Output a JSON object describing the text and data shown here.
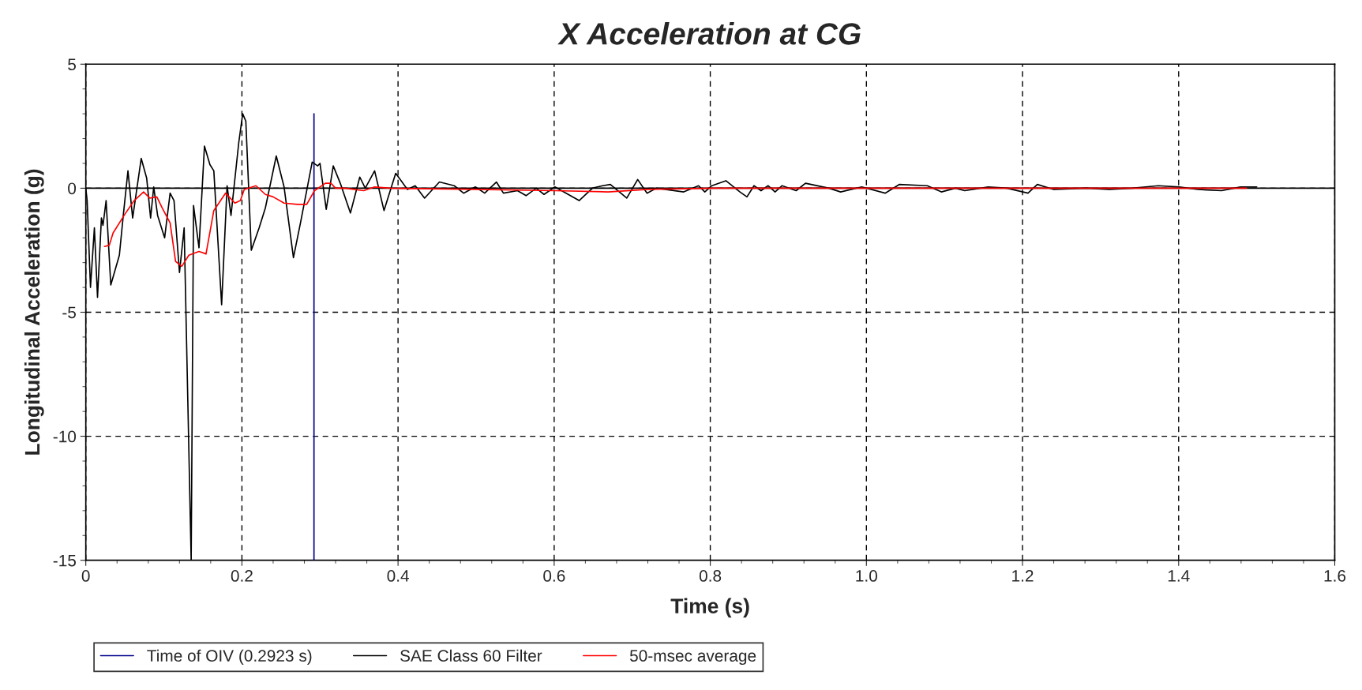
{
  "chart_data": {
    "type": "line",
    "title": "X Acceleration at CG",
    "xlabel": "Time (s)",
    "ylabel": "Longitudinal Acceleration (g)",
    "xlim": [
      0,
      1.6
    ],
    "ylim": [
      -15,
      5
    ],
    "xticks": [
      0,
      0.2,
      0.4,
      0.6,
      0.8,
      {
        "value": 1.0,
        "label": "1.0"
      },
      1.2,
      1.4,
      1.6
    ],
    "yticks": [
      -15,
      -10,
      -5,
      0,
      5
    ],
    "grid": true,
    "legend": "bottom",
    "line_style": "solid",
    "marker": "none",
    "ref_lines": [
      {
        "axis": "y",
        "value": 0,
        "color": "#000000",
        "line_style": "solid"
      }
    ],
    "series": [
      {
        "name": "Time of OIV (0.2923 s)",
        "color": "#00008b",
        "x": [
          0.2923,
          0.2923
        ],
        "values": [
          -15,
          3
        ]
      },
      {
        "name": "SAE Class 60 Filter",
        "color": "#000000",
        "x": [
          0,
          0.0017,
          0.006,
          0.011,
          0.015,
          0.02,
          0.022,
          0.026,
          0.032,
          0.043,
          0.048,
          0.054,
          0.06,
          0.071,
          0.078,
          0.083,
          0.087,
          0.092,
          0.101,
          0.108,
          0.113,
          0.12,
          0.126,
          0.135,
          0.138,
          0.145,
          0.152,
          0.159,
          0.164,
          0.174,
          0.181,
          0.186,
          0.196,
          0.201,
          0.205,
          0.212,
          0.222,
          0.23,
          0.244,
          0.254,
          0.266,
          0.275,
          0.29,
          0.297,
          0.3,
          0.308,
          0.317,
          0.326,
          0.339,
          0.351,
          0.358,
          0.37,
          0.382,
          0.397,
          0.412,
          0.422,
          0.434,
          0.453,
          0.472,
          0.484,
          0.499,
          0.511,
          0.526,
          0.535,
          0.553,
          0.564,
          0.577,
          0.587,
          0.601,
          0.618,
          0.632,
          0.649,
          0.662,
          0.672,
          0.693,
          0.707,
          0.719,
          0.731,
          0.766,
          0.785,
          0.793,
          0.802,
          0.82,
          0.838,
          0.847,
          0.856,
          0.865,
          0.874,
          0.883,
          0.892,
          0.91,
          0.922,
          0.952,
          0.967,
          0.994,
          1.024,
          1.042,
          1.078,
          1.096,
          1.114,
          1.126,
          1.156,
          1.18,
          1.207,
          1.219,
          1.24,
          1.282,
          1.311,
          1.341,
          1.374,
          1.401,
          1.425,
          1.455,
          1.479,
          1.5
        ],
        "values": [
          0,
          -0.5,
          -4.0,
          -1.6,
          -4.4,
          -1.2,
          -1.5,
          -0.5,
          -3.9,
          -2.7,
          -1.1,
          0.7,
          -1.2,
          1.2,
          0.4,
          -1.2,
          0.05,
          -1.1,
          -2.0,
          -0.2,
          -0.5,
          -3.4,
          -1.6,
          -15,
          -0.7,
          -2.4,
          1.7,
          0.95,
          0.7,
          -4.7,
          0.1,
          -1.1,
          1.85,
          3.0,
          2.7,
          -2.5,
          -1.6,
          -0.8,
          1.3,
          0.05,
          -2.8,
          -1.4,
          1.05,
          0.9,
          1.0,
          -0.85,
          0.9,
          0.2,
          -1.0,
          0.45,
          0,
          0.7,
          -0.9,
          0.6,
          -0.05,
          0.1,
          -0.4,
          0.25,
          0.1,
          -0.2,
          0.05,
          -0.2,
          0.25,
          -0.2,
          -0.1,
          -0.3,
          0,
          -0.25,
          0.05,
          -0.25,
          -0.5,
          0,
          0.1,
          0.15,
          -0.4,
          0.35,
          -0.2,
          0,
          -0.15,
          0.1,
          -0.15,
          0.1,
          0.3,
          -0.15,
          -0.35,
          0.1,
          -0.1,
          0.1,
          -0.15,
          0.1,
          -0.1,
          0.2,
          0,
          -0.15,
          0.05,
          -0.2,
          0.15,
          0.1,
          -0.15,
          0,
          -0.1,
          0.05,
          0,
          -0.2,
          0.15,
          -0.05,
          0,
          -0.05,
          0,
          0.1,
          0.05,
          -0.05,
          -0.1,
          0.05,
          0.05
        ]
      },
      {
        "name": "50-msec average",
        "color": "#ff0000",
        "x": [
          0.024,
          0.03,
          0.035,
          0.05,
          0.062,
          0.074,
          0.082,
          0.091,
          0.098,
          0.108,
          0.115,
          0.123,
          0.132,
          0.145,
          0.154,
          0.164,
          0.179,
          0.191,
          0.198,
          0.203,
          0.218,
          0.23,
          0.24,
          0.254,
          0.271,
          0.283,
          0.293,
          0.307,
          0.314,
          0.32,
          0.332,
          0.356,
          0.37,
          0.39,
          0.499,
          0.601,
          0.669,
          0.72,
          0.805,
          1.0,
          1.2,
          1.487
        ],
        "values": [
          -2.35,
          -2.3,
          -1.8,
          -1.05,
          -0.5,
          -0.15,
          -0.4,
          -0.35,
          -0.8,
          -1.4,
          -2.95,
          -3.15,
          -2.7,
          -2.55,
          -2.65,
          -0.9,
          -0.2,
          -0.6,
          -0.5,
          -0.05,
          0.1,
          -0.25,
          -0.35,
          -0.6,
          -0.65,
          -0.65,
          -0.1,
          0.2,
          0.2,
          0,
          0,
          -0.1,
          0.05,
          0,
          -0.05,
          -0.1,
          -0.15,
          -0.05,
          0,
          0,
          0,
          0
        ]
      }
    ]
  }
}
